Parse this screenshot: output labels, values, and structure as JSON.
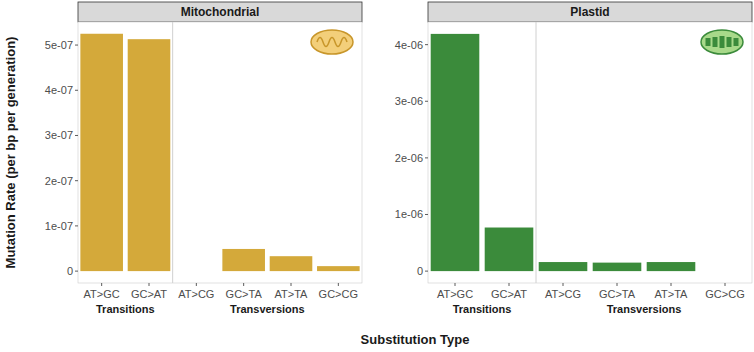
{
  "chart_data": [
    {
      "type": "bar",
      "title": "Mitochondrial",
      "categories": [
        "AT>GC",
        "GC>AT",
        "AT>CG",
        "GC>TA",
        "AT>TA",
        "GC>CG"
      ],
      "values": [
        5.25e-07,
        5.13e-07,
        0,
        4.9e-08,
        3.3e-08,
        1.1e-08
      ],
      "groups": [
        {
          "label": "Transitions",
          "count": 2
        },
        {
          "label": "Transversions",
          "count": 4
        }
      ],
      "color": "#d4a93a",
      "ylim": [
        -2.63e-08,
        5.51e-07
      ],
      "yticks": [
        0,
        {
          "value": 1e-07,
          "label": "1e-07"
        },
        {
          "value": 2e-07,
          "label": "2e-07"
        },
        {
          "value": 3e-07,
          "label": "3e-07"
        },
        {
          "value": 4e-07,
          "label": "4e-07"
        },
        {
          "value": 5e-07,
          "label": "5e-07"
        }
      ],
      "grid": false
    },
    {
      "type": "bar",
      "title": "Plastid",
      "categories": [
        "AT>GC",
        "GC>AT",
        "AT>CG",
        "GC>TA",
        "AT>TA",
        "GC>CG"
      ],
      "values": [
        4.19e-06,
        7.7e-07,
        1.6e-07,
        1.5e-07,
        1.6e-07,
        0
      ],
      "groups": [
        {
          "label": "Transitions",
          "count": 2
        },
        {
          "label": "Transversions",
          "count": 4
        }
      ],
      "color": "#3b8b3b",
      "ylim": [
        -2.1e-07,
        4.4e-06
      ],
      "yticks": [
        0,
        {
          "value": 1e-06,
          "label": "1e-06"
        },
        {
          "value": 2e-06,
          "label": "2e-06"
        },
        {
          "value": 3e-06,
          "label": "3e-06"
        },
        {
          "value": 4e-06,
          "label": "4e-06"
        }
      ],
      "grid": false
    }
  ],
  "y_label": "Mutation Rate (per bp per generation)",
  "x_label": "Substitution Type"
}
